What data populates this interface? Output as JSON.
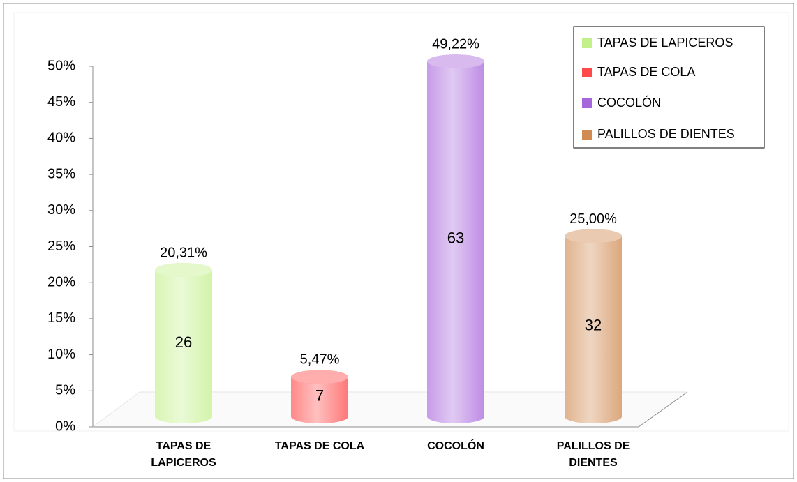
{
  "chart_data": {
    "type": "cylinder",
    "categories": [
      "TAPAS DE LAPICEROS",
      "TAPAS DE COLA",
      "COCOLÓN",
      "PALILLOS DE DIENTES"
    ],
    "values": [
      20.31,
      5.47,
      49.22,
      25.0
    ],
    "value_labels": [
      "20,31%",
      "5,47%",
      "49,22%",
      "25,00%"
    ],
    "counts": [
      26,
      7,
      63,
      32
    ],
    "colors": [
      "#c4f08c",
      "#ff4a4a",
      "#a866dc",
      "#d08a52"
    ],
    "ylim": [
      0,
      50
    ],
    "yticks": [
      {
        "value": 0,
        "label": "0%"
      },
      {
        "value": 5,
        "label": "5%"
      },
      {
        "value": 10,
        "label": "10%"
      },
      {
        "value": 15,
        "label": "15%"
      },
      {
        "value": 20,
        "label": "20%"
      },
      {
        "value": 25,
        "label": "25%"
      },
      {
        "value": 30,
        "label": "30%"
      },
      {
        "value": 35,
        "label": "35%"
      },
      {
        "value": 40,
        "label": "40%"
      },
      {
        "value": 45,
        "label": "45%"
      },
      {
        "value": 50,
        "label": "50%"
      }
    ],
    "legend": "top-right"
  }
}
